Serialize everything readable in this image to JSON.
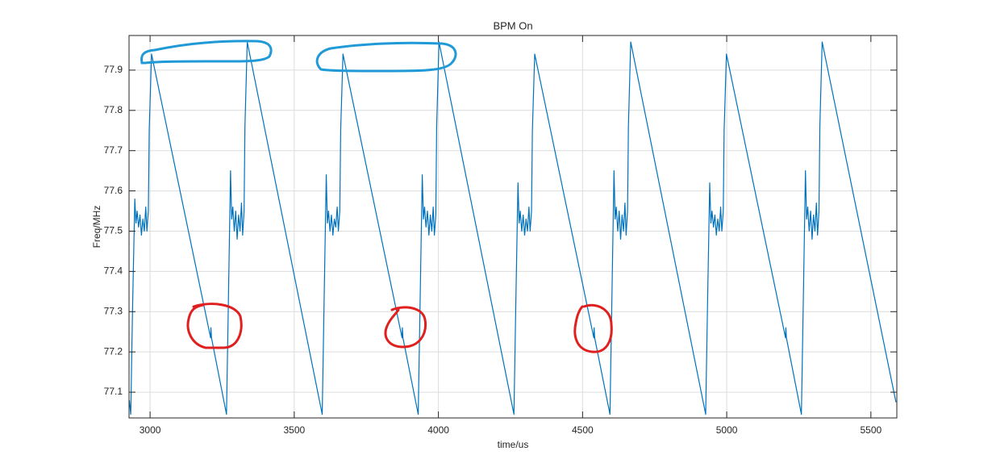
{
  "chart_data": {
    "type": "line",
    "title": "BPM On",
    "x_label": "time/us",
    "y_label": "Freq/MHz",
    "color": "#0072bd",
    "grid": true,
    "xlim": [
      2927,
      5590
    ],
    "ylim": [
      77.036,
      77.986
    ],
    "xticks": [
      3000,
      3500,
      4000,
      4500,
      5000,
      5500
    ],
    "yticks": [
      77.1,
      77.2,
      77.3,
      77.4,
      77.5,
      77.6,
      77.7,
      77.8,
      77.9
    ],
    "x": [
      2928,
      2933,
      2939,
      2947,
      2951,
      2955,
      2960,
      2965,
      2970,
      2975,
      2980,
      2985,
      2989,
      2994,
      2997,
      3005,
      3210,
      3211,
      3213,
      3265,
      3271,
      3279,
      3283,
      3287,
      3292,
      3297,
      3302,
      3307,
      3312,
      3317,
      3321,
      3326,
      3329,
      3337,
      3597,
      3603,
      3611,
      3615,
      3619,
      3624,
      3629,
      3634,
      3639,
      3644,
      3649,
      3653,
      3658,
      3661,
      3669,
      3874,
      3875,
      3877,
      3930,
      3936,
      3944,
      3948,
      3952,
      3957,
      3962,
      3967,
      3972,
      3977,
      3982,
      3986,
      3991,
      3994,
      4002,
      4262,
      4268,
      4276,
      4280,
      4284,
      4289,
      4294,
      4299,
      4304,
      4309,
      4314,
      4318,
      4323,
      4326,
      4334,
      4539,
      4540,
      4542,
      4595,
      4601,
      4609,
      4613,
      4617,
      4622,
      4627,
      4632,
      4637,
      4642,
      4647,
      4651,
      4656,
      4659,
      4667,
      4927,
      4933,
      4941,
      4945,
      4949,
      4954,
      4959,
      4964,
      4969,
      4974,
      4979,
      4983,
      4988,
      4991,
      4999,
      5204,
      5205,
      5207,
      5259,
      5265,
      5273,
      5277,
      5281,
      5286,
      5291,
      5296,
      5301,
      5306,
      5311,
      5315,
      5320,
      5323,
      5331,
      5587
    ],
    "values": [
      77.08,
      77.045,
      77.3,
      77.58,
      77.52,
      77.55,
      77.51,
      77.54,
      77.49,
      77.53,
      77.5,
      77.56,
      77.5,
      77.55,
      77.75,
      77.94,
      77.235,
      77.26,
      77.235,
      77.045,
      77.3,
      77.65,
      77.53,
      77.56,
      77.5,
      77.55,
      77.48,
      77.54,
      77.5,
      77.57,
      77.49,
      77.55,
      77.76,
      77.97,
      77.045,
      77.3,
      77.64,
      77.52,
      77.55,
      77.5,
      77.54,
      77.49,
      77.53,
      77.51,
      77.56,
      77.5,
      77.55,
      77.75,
      77.94,
      77.235,
      77.26,
      77.235,
      77.045,
      77.3,
      77.64,
      77.53,
      77.56,
      77.51,
      77.55,
      77.49,
      77.54,
      77.5,
      77.56,
      77.49,
      77.54,
      77.76,
      77.97,
      77.045,
      77.3,
      77.62,
      77.52,
      77.55,
      77.5,
      77.54,
      77.49,
      77.53,
      77.5,
      77.56,
      77.5,
      77.55,
      77.75,
      77.94,
      77.235,
      77.26,
      77.235,
      77.045,
      77.3,
      77.65,
      77.53,
      77.56,
      77.5,
      77.55,
      77.48,
      77.54,
      77.5,
      77.57,
      77.49,
      77.55,
      77.76,
      77.97,
      77.045,
      77.3,
      77.62,
      77.52,
      77.55,
      77.51,
      77.54,
      77.49,
      77.53,
      77.5,
      77.56,
      77.5,
      77.55,
      77.75,
      77.94,
      77.235,
      77.26,
      77.235,
      77.045,
      77.3,
      77.65,
      77.53,
      77.56,
      77.5,
      77.55,
      77.48,
      77.54,
      77.5,
      77.57,
      77.49,
      77.55,
      77.76,
      77.97,
      77.075
    ]
  }
}
